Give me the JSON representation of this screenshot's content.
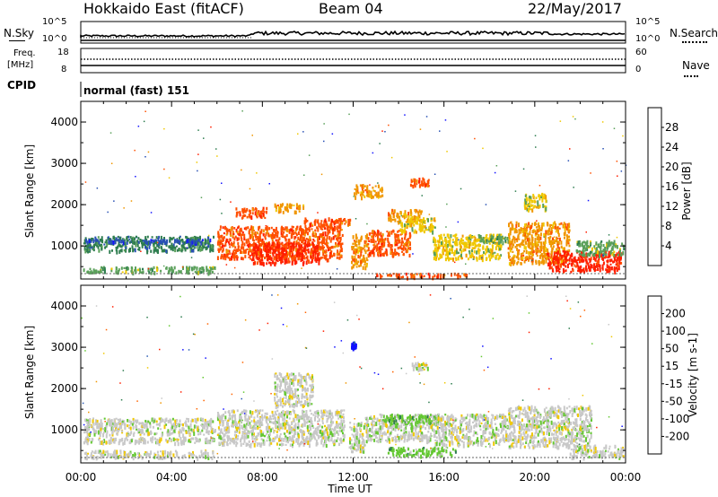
{
  "header": {
    "site": "Hokkaido East (fitACF)",
    "beam": "Beam 04",
    "date": "22/May/2017"
  },
  "strip_labels": {
    "nsky": "N.Sky",
    "nsearch": "N.Search",
    "freq": "Freq.",
    "freq_unit": "[MHz]",
    "cpid": "CPID",
    "nave": "Nave",
    "mode": "normal (fast) 151",
    "nsky_ticks": [
      "10^5",
      "10^0"
    ],
    "nsearch_ticks": [
      "10^5",
      "10^0"
    ],
    "freq_ticks": [
      "18",
      "8"
    ],
    "nave_ticks": [
      "60",
      "0"
    ]
  },
  "chart_data": [
    {
      "type": "heatmap",
      "panel": "power",
      "ylabel": "Slant Range [km]",
      "yticks": [
        "1000",
        "2000",
        "3000",
        "4000"
      ],
      "ylim": [
        200,
        4500
      ],
      "xlim": [
        0,
        24
      ],
      "colorbar_label": "Power [dB]",
      "colorbar_ticks": [
        "4",
        "8",
        "12",
        "16",
        "20",
        "24",
        "28"
      ],
      "colors": [
        "#1414ff",
        "#2850b4",
        "#2e7d4f",
        "#5aa05a",
        "#f0c800",
        "#f09600",
        "#ff5000",
        "#ff1e00"
      ],
      "regions": [
        {
          "x": [
            0.1,
            5.9
          ],
          "y": [
            900,
            1250
          ],
          "level": 2
        },
        {
          "x": [
            0.1,
            5.9
          ],
          "y": [
            1100,
            1180
          ],
          "level": 1
        },
        {
          "x": [
            0.1,
            5.9
          ],
          "y": [
            380,
            520
          ],
          "level": 3
        },
        {
          "x": [
            6.0,
            11.5
          ],
          "y": [
            700,
            1500
          ],
          "level": 6
        },
        {
          "x": [
            7.5,
            10.5
          ],
          "y": [
            600,
            1100
          ],
          "level": 7
        },
        {
          "x": [
            6.8,
            8.2
          ],
          "y": [
            1700,
            1950
          ],
          "level": 6
        },
        {
          "x": [
            8.5,
            9.8
          ],
          "y": [
            1850,
            2050
          ],
          "level": 5
        },
        {
          "x": [
            9.8,
            11.9
          ],
          "y": [
            1500,
            1700
          ],
          "level": 6
        },
        {
          "x": [
            11.9,
            12.6
          ],
          "y": [
            500,
            1300
          ],
          "level": 5
        },
        {
          "x": [
            12.6,
            14.5
          ],
          "y": [
            800,
            1400
          ],
          "level": 6
        },
        {
          "x": [
            13.5,
            15.0
          ],
          "y": [
            1600,
            1900
          ],
          "level": 5
        },
        {
          "x": [
            14.0,
            15.6
          ],
          "y": [
            1350,
            1700
          ],
          "level": 4
        },
        {
          "x": [
            12.0,
            13.3
          ],
          "y": [
            2200,
            2500
          ],
          "level": 5
        },
        {
          "x": [
            14.5,
            15.3
          ],
          "y": [
            2450,
            2700
          ],
          "level": 6
        },
        {
          "x": [
            13.0,
            17.0
          ],
          "y": [
            260,
            360
          ],
          "level": 6
        },
        {
          "x": [
            15.5,
            18.5
          ],
          "y": [
            700,
            1300
          ],
          "level": 4
        },
        {
          "x": [
            17.5,
            18.8
          ],
          "y": [
            1100,
            1300
          ],
          "level": 3
        },
        {
          "x": [
            18.8,
            21.5
          ],
          "y": [
            600,
            1600
          ],
          "level": 5
        },
        {
          "x": [
            19.5,
            20.5
          ],
          "y": [
            1900,
            2300
          ],
          "level": 4
        },
        {
          "x": [
            20.5,
            23.8
          ],
          "y": [
            400,
            900
          ],
          "level": 7
        },
        {
          "x": [
            21.8,
            23.9
          ],
          "y": [
            800,
            1150
          ],
          "level": 3
        }
      ]
    },
    {
      "type": "heatmap",
      "panel": "velocity",
      "xlabel": "Time UT",
      "xticks": [
        "00:00",
        "04:00",
        "08:00",
        "12:00",
        "16:00",
        "20:00",
        "00:00"
      ],
      "ylabel": "Slant Range [km]",
      "yticks": [
        "1000",
        "2000",
        "3000",
        "4000"
      ],
      "ylim": [
        200,
        4500
      ],
      "xlim": [
        0,
        24
      ],
      "colorbar_label": "Velocity [m s-1]",
      "colorbar_ticks": [
        "200",
        "100",
        "50",
        "15",
        "-15",
        "-50",
        "-100",
        "-200"
      ],
      "colors": [
        "#1010ff",
        "#285ab4",
        "#2e7d4f",
        "#64c832",
        "#c8c8c8",
        "#f0c800",
        "#f09600",
        "#ff6400",
        "#ff1e00"
      ],
      "regions": [
        {
          "x": [
            0.1,
            5.9
          ],
          "y": [
            900,
            1300
          ],
          "level": 4
        },
        {
          "x": [
            0.1,
            5.9
          ],
          "y": [
            700,
            850
          ],
          "level": 4
        },
        {
          "x": [
            0.1,
            5.9
          ],
          "y": [
            350,
            520
          ],
          "level": 4
        },
        {
          "x": [
            6.0,
            11.6
          ],
          "y": [
            650,
            1500
          ],
          "level": 4
        },
        {
          "x": [
            8.5,
            10.2
          ],
          "y": [
            1600,
            2400
          ],
          "level": 4
        },
        {
          "x": [
            11.8,
            12.5
          ],
          "y": [
            500,
            1200
          ],
          "level": 4
        },
        {
          "x": [
            12.5,
            15.5
          ],
          "y": [
            750,
            1400
          ],
          "level": 4
        },
        {
          "x": [
            14.5,
            15.3
          ],
          "y": [
            2450,
            2650
          ],
          "level": 4
        },
        {
          "x": [
            13.3,
            15.8
          ],
          "y": [
            1150,
            1400
          ],
          "level": 3
        },
        {
          "x": [
            13.5,
            16.5
          ],
          "y": [
            400,
            600
          ],
          "level": 3
        },
        {
          "x": [
            15.5,
            18.8
          ],
          "y": [
            650,
            1400
          ],
          "level": 4
        },
        {
          "x": [
            18.8,
            22.5
          ],
          "y": [
            600,
            1600
          ],
          "level": 4
        },
        {
          "x": [
            21.5,
            23.9
          ],
          "y": [
            350,
            650
          ],
          "level": 4
        },
        {
          "x": [
            11.9,
            12.1
          ],
          "y": [
            3000,
            3150
          ],
          "level": 0
        }
      ]
    }
  ]
}
